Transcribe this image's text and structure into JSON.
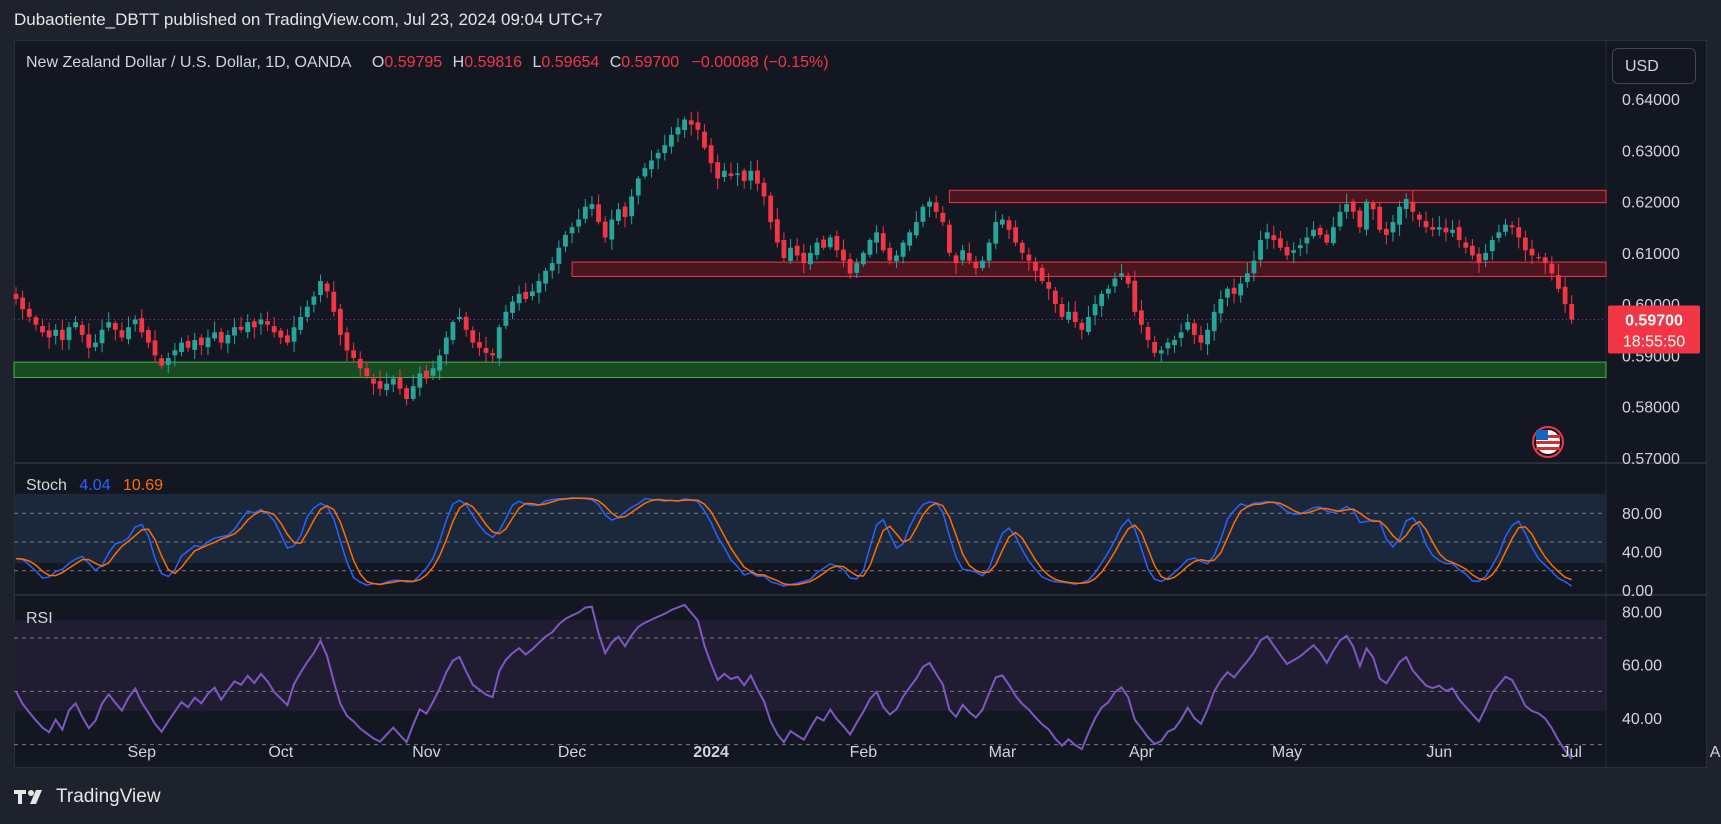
{
  "header": {
    "publisher_line": "Dubaotiente_DBTT published on TradingView.com, Jul 23, 2024 09:04 UTC+7"
  },
  "legend": {
    "symbol": "New Zealand Dollar / U.S. Dollar, 1D, OANDA",
    "o_label": "O",
    "o": "0.59795",
    "h_label": "H",
    "h": "0.59816",
    "l_label": "L",
    "l": "0.59654",
    "c_label": "C",
    "c": "0.59700",
    "change": "−0.00088 (−0.15%)"
  },
  "currency_button": "USD",
  "price_badge": {
    "price": "0.59700",
    "countdown": "18:55:50"
  },
  "footer": {
    "brand": "TradingView"
  },
  "colors": {
    "up": "#26a69a",
    "down": "#f23645",
    "stoch_k": "#2962ff",
    "stoch_d": "#ff6d00",
    "rsi": "#7e57c2",
    "resistance_zone": "#f23645",
    "support_zone": "#4caf50"
  },
  "chart_data": [
    {
      "type": "candlestick",
      "title": "New Zealand Dollar / U.S. Dollar, 1D, OANDA",
      "ylim": [
        0.57,
        0.645
      ],
      "yticks": [
        "0.64000",
        "0.63000",
        "0.62000",
        "0.61000",
        "0.60000",
        "0.59000",
        "0.58000",
        "0.57000"
      ],
      "xticks": [
        "Sep",
        "Oct",
        "Nov",
        "Dec",
        "2024",
        "Feb",
        "Mar",
        "Apr",
        "May",
        "Jun",
        "Jul",
        "Aug"
      ],
      "last_price": 0.597,
      "zones": [
        {
          "name": "resistance-upper",
          "from": "2024-02-20",
          "y": [
            0.6198,
            0.6222
          ]
        },
        {
          "name": "resistance-lower",
          "from": "2023-12-01",
          "y": [
            0.6054,
            0.6082
          ]
        },
        {
          "name": "support",
          "from": "2023-08-01",
          "y": [
            0.5857,
            0.5887
          ]
        }
      ],
      "closes": [
        0.601,
        0.599,
        0.5975,
        0.596,
        0.5945,
        0.5935,
        0.595,
        0.593,
        0.5955,
        0.5965,
        0.594,
        0.5915,
        0.5925,
        0.595,
        0.5965,
        0.595,
        0.5935,
        0.5955,
        0.597,
        0.5945,
        0.5925,
        0.59,
        0.588,
        0.5895,
        0.591,
        0.5925,
        0.5915,
        0.593,
        0.592,
        0.5935,
        0.5945,
        0.5925,
        0.594,
        0.5955,
        0.595,
        0.5965,
        0.5955,
        0.597,
        0.596,
        0.5945,
        0.5935,
        0.5925,
        0.5955,
        0.5975,
        0.5995,
        0.6015,
        0.6045,
        0.6025,
        0.5985,
        0.594,
        0.591,
        0.5895,
        0.5875,
        0.586,
        0.5845,
        0.5835,
        0.5845,
        0.5855,
        0.5835,
        0.5815,
        0.584,
        0.5865,
        0.5855,
        0.5875,
        0.59,
        0.5935,
        0.5965,
        0.5975,
        0.595,
        0.5925,
        0.5915,
        0.5905,
        0.59,
        0.5955,
        0.5985,
        0.6005,
        0.602,
        0.601,
        0.6025,
        0.6045,
        0.6065,
        0.608,
        0.611,
        0.6135,
        0.615,
        0.6165,
        0.619,
        0.6195,
        0.616,
        0.613,
        0.6165,
        0.6185,
        0.617,
        0.621,
        0.6245,
        0.6265,
        0.628,
        0.6295,
        0.631,
        0.633,
        0.6345,
        0.636,
        0.635,
        0.634,
        0.6305,
        0.6275,
        0.6245,
        0.626,
        0.625,
        0.6255,
        0.624,
        0.626,
        0.6235,
        0.621,
        0.616,
        0.612,
        0.609,
        0.611,
        0.6095,
        0.608,
        0.61,
        0.612,
        0.611,
        0.613,
        0.6105,
        0.6085,
        0.606,
        0.608,
        0.61,
        0.6125,
        0.614,
        0.6105,
        0.6085,
        0.6095,
        0.612,
        0.614,
        0.616,
        0.619,
        0.62,
        0.618,
        0.616,
        0.61,
        0.608,
        0.6105,
        0.6085,
        0.607,
        0.6085,
        0.612,
        0.616,
        0.6165,
        0.6145,
        0.612,
        0.61,
        0.6085,
        0.6065,
        0.6045,
        0.603,
        0.6,
        0.5975,
        0.5985,
        0.5965,
        0.595,
        0.5975,
        0.6,
        0.602,
        0.603,
        0.605,
        0.606,
        0.604,
        0.5985,
        0.596,
        0.593,
        0.5905,
        0.591,
        0.5925,
        0.593,
        0.5945,
        0.5965,
        0.594,
        0.5925,
        0.595,
        0.5985,
        0.601,
        0.603,
        0.602,
        0.604,
        0.606,
        0.6085,
        0.6125,
        0.614,
        0.6125,
        0.611,
        0.6095,
        0.6105,
        0.6115,
        0.613,
        0.6145,
        0.6135,
        0.612,
        0.615,
        0.618,
        0.6195,
        0.618,
        0.615,
        0.62,
        0.6185,
        0.6145,
        0.6135,
        0.616,
        0.619,
        0.6205,
        0.618,
        0.6165,
        0.615,
        0.6145,
        0.615,
        0.614,
        0.6145,
        0.6125,
        0.611,
        0.6095,
        0.608,
        0.61,
        0.6125,
        0.614,
        0.6155,
        0.615,
        0.613,
        0.6105,
        0.6095,
        0.609,
        0.608,
        0.606,
        0.603,
        0.6,
        0.597
      ]
    },
    {
      "type": "line",
      "title": "Stoch",
      "values_shown": {
        "k": "4.04",
        "d": "10.69"
      },
      "ylim": [
        0,
        100
      ],
      "yticks": [
        "80.00",
        "40.00",
        "0.00"
      ],
      "bands": [
        20,
        50,
        80
      ],
      "series": [
        {
          "name": "K",
          "key": "stoch_k"
        },
        {
          "name": "D",
          "key": "stoch_d"
        }
      ]
    },
    {
      "type": "line",
      "title": "RSI",
      "ylim": [
        25,
        85
      ],
      "yticks": [
        "80.00",
        "60.00",
        "40.00"
      ],
      "bands": [
        30,
        50,
        70
      ],
      "series": [
        {
          "name": "RSI",
          "key": "rsi"
        }
      ]
    }
  ]
}
